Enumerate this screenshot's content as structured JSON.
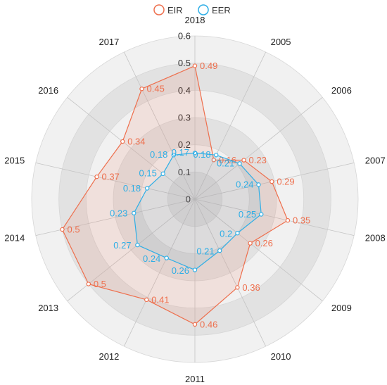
{
  "chart_data": {
    "type": "radar",
    "categories": [
      "2018",
      "2005",
      "2006",
      "2007",
      "2008",
      "2009",
      "2010",
      "2011",
      "2012",
      "2013",
      "2014",
      "2015",
      "2016",
      "2017"
    ],
    "series": [
      {
        "name": "EIR",
        "color": "#ee6f4d",
        "values": [
          0.49,
          0.16,
          0.23,
          0.29,
          0.35,
          0.26,
          0.36,
          0.46,
          0.41,
          0.5,
          0.5,
          0.37,
          0.34,
          0.45
        ],
        "labels": [
          "0.49",
          "0.16",
          "0.23",
          "0.29",
          "0.35",
          "0.26",
          "0.36",
          "0.46",
          "0.41",
          "0.5",
          "0.5",
          "0.37",
          "0.34",
          "0.45"
        ]
      },
      {
        "name": "EER",
        "color": "#2eaee6",
        "values": [
          0.17,
          0.18,
          0.21,
          0.24,
          0.25,
          0.2,
          0.21,
          0.26,
          0.24,
          0.27,
          0.23,
          0.18,
          0.15,
          0.18
        ],
        "labels": [
          "0.17",
          "0.18",
          "0.21",
          "0.24",
          "0.25",
          "0.2",
          "0.21",
          "0.26",
          "0.24",
          "0.27",
          "0.23",
          "0.18",
          "0.15",
          "0.18"
        ]
      }
    ],
    "radial_ticks": [
      "0",
      "0.1",
      "0.2",
      "0.3",
      "0.4",
      "0.5",
      "0.6"
    ],
    "rmax": 0.6,
    "legend_position": "top"
  }
}
